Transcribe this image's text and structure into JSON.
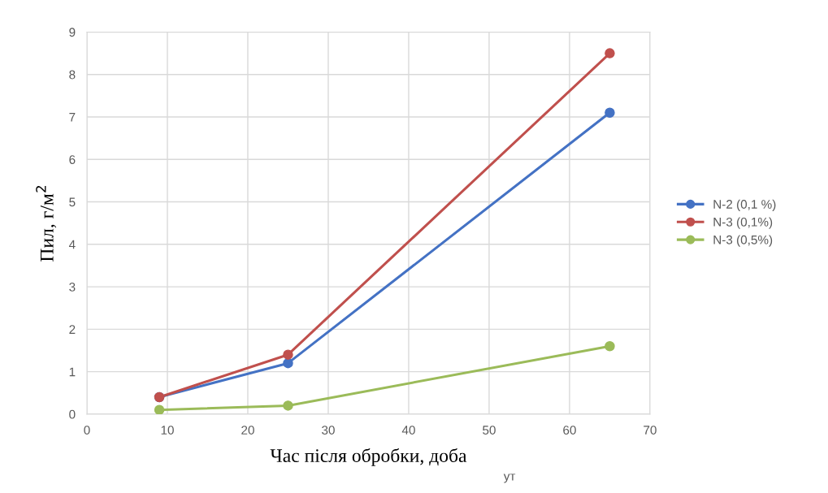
{
  "chart_data": {
    "type": "line",
    "xlabel": "Час після обробки, доба",
    "ylabel": "Пил, г/м$^{2}$",
    "x": [
      9,
      25,
      65
    ],
    "series": [
      {
        "name": "N-2 (0,1 %)",
        "color": "#4472c4",
        "values": [
          0.4,
          1.2,
          7.1
        ]
      },
      {
        "name": "N-3 (0,1%)",
        "color": "#c0504d",
        "values": [
          0.4,
          1.4,
          8.5
        ]
      },
      {
        "name": "N-3 (0,5%)",
        "color": "#9bbb59",
        "values": [
          0.1,
          0.2,
          1.6
        ]
      }
    ],
    "xlim": [
      0,
      70
    ],
    "xticks": [
      0,
      10,
      20,
      30,
      40,
      50,
      60,
      70
    ],
    "ylim": [
      0,
      9
    ],
    "yticks": [
      0,
      1,
      2,
      3,
      4,
      5,
      6,
      7,
      8,
      9
    ],
    "grid": true,
    "legend": "right",
    "marker": "circle",
    "line_style": "solid",
    "annotations": [
      "ут"
    ]
  }
}
